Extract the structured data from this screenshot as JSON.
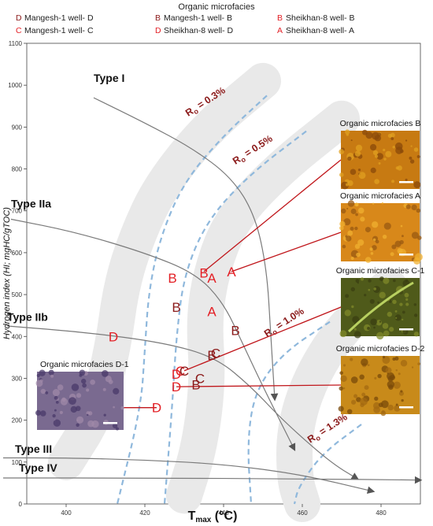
{
  "chart_data": {
    "type": "scatter",
    "legend": {
      "title": "Organic microfacies",
      "entries": [
        {
          "symbol": "D",
          "label": "Mangesh-1 well- D",
          "color": "#8b1a1a"
        },
        {
          "symbol": "B",
          "label": "Mangesh-1 well- B",
          "color": "#8b1a1a"
        },
        {
          "symbol": "B",
          "label": "Sheikhan-8 well- B",
          "color": "#e31e24"
        },
        {
          "symbol": "C",
          "label": "Mangesh-1 well- C",
          "color": "#e31e24"
        },
        {
          "symbol": "D",
          "label": "Sheikhan-8 well- D",
          "color": "#e31e24"
        },
        {
          "symbol": "A",
          "label": "Sheikhan-8 well- A",
          "color": "#e31e24"
        }
      ]
    },
    "xlabel_main": "T",
    "xlabel_sub": "max",
    "xlabel_unit": " (°C)",
    "ylabel": "Hydrogen index (HI; mgHC/gTOC)",
    "xlim": [
      390,
      490
    ],
    "ylim": [
      0,
      1100
    ],
    "xticks": [
      400,
      420,
      440,
      460,
      480
    ],
    "yticks": [
      0,
      100,
      200,
      300,
      400,
      500,
      600,
      700,
      800,
      900,
      1000,
      1100
    ],
    "kerogen_types": [
      {
        "label": "Type I",
        "label_at": [
          407,
          1000
        ],
        "curve": [
          [
            407,
            970
          ],
          [
            420,
            910
          ],
          [
            432,
            850
          ],
          [
            442,
            780
          ],
          [
            448,
            690
          ],
          [
            451,
            560
          ],
          [
            452,
            400
          ],
          [
            453,
            250
          ]
        ]
      },
      {
        "label": "Type IIa",
        "label_at": [
          386,
          700
        ],
        "curve": [
          [
            386,
            680
          ],
          [
            402,
            650
          ],
          [
            420,
            600
          ],
          [
            433,
            550
          ],
          [
            440,
            480
          ],
          [
            445,
            380
          ],
          [
            450,
            280
          ],
          [
            458,
            130
          ]
        ]
      },
      {
        "label": "Type IIb",
        "label_at": [
          385,
          430
        ],
        "curve": [
          [
            385,
            425
          ],
          [
            405,
            410
          ],
          [
            425,
            385
          ],
          [
            438,
            350
          ],
          [
            447,
            280
          ],
          [
            455,
            200
          ],
          [
            467,
            100
          ],
          [
            474,
            60
          ]
        ]
      },
      {
        "label": "Type III",
        "label_at": [
          387,
          115
        ],
        "curve": [
          [
            384,
            110
          ],
          [
            400,
            110
          ],
          [
            420,
            105
          ],
          [
            440,
            95
          ],
          [
            460,
            70
          ],
          [
            478,
            30
          ]
        ]
      },
      {
        "label": "Type IV",
        "label_at": [
          388,
          70
        ],
        "curve": [
          [
            384,
            62
          ],
          [
            420,
            62
          ],
          [
            460,
            60
          ],
          [
            490,
            57
          ]
        ]
      }
    ],
    "isoreflectance": [
      {
        "label_main": "R",
        "label_sub": "o",
        "label_value": " = 0.3%",
        "label_at": [
          431,
          925
        ],
        "label_rotate": -33,
        "curve": [
          [
            451,
            975
          ],
          [
            440,
            880
          ],
          [
            430,
            770
          ],
          [
            424,
            640
          ],
          [
            421,
            510
          ],
          [
            420,
            370
          ],
          [
            419,
            230
          ],
          [
            413,
            0
          ]
        ]
      },
      {
        "label_main": "R",
        "label_sub": "o",
        "label_value": " = 0.5%",
        "label_at": [
          443,
          810
        ],
        "label_rotate": -33,
        "curve": [
          [
            461,
            890
          ],
          [
            447,
            790
          ],
          [
            436,
            680
          ],
          [
            430,
            550
          ],
          [
            428,
            400
          ],
          [
            427,
            240
          ],
          [
            425,
            0
          ]
        ]
      },
      {
        "label_main": "R",
        "label_sub": "o",
        "label_value": " = 1.0%",
        "label_at": [
          451,
          398
        ],
        "label_rotate": -33,
        "curve": [
          [
            467,
            435
          ],
          [
            455,
            360
          ],
          [
            448,
            270
          ],
          [
            446,
            150
          ],
          [
            447,
            0
          ]
        ]
      },
      {
        "label_main": "R",
        "label_sub": "o",
        "label_value": " = 1.3%",
        "label_at": [
          462,
          145
        ],
        "label_rotate": -33,
        "curve": [
          [
            475,
            190
          ],
          [
            465,
            120
          ],
          [
            459,
            40
          ],
          [
            458,
            0
          ]
        ]
      }
    ],
    "points": [
      {
        "symbol": "B",
        "x": 427,
        "y": 540,
        "color": "#e31e24"
      },
      {
        "symbol": "B",
        "x": 435,
        "y": 552,
        "color": "#e31e24"
      },
      {
        "symbol": "A",
        "x": 437,
        "y": 540,
        "color": "#e31e24"
      },
      {
        "symbol": "A",
        "x": 442,
        "y": 555,
        "color": "#e31e24"
      },
      {
        "symbol": "B",
        "x": 428,
        "y": 470,
        "color": "#8b1a1a"
      },
      {
        "symbol": "A",
        "x": 437,
        "y": 460,
        "color": "#e31e24"
      },
      {
        "symbol": "B",
        "x": 443,
        "y": 415,
        "color": "#8b1a1a"
      },
      {
        "symbol": "D",
        "x": 412,
        "y": 400,
        "color": "#e31e24"
      },
      {
        "symbol": "B",
        "x": 437,
        "y": 355,
        "color": "#8b1a1a"
      },
      {
        "symbol": "C",
        "x": 438,
        "y": 360,
        "color": "#8b1a1a"
      },
      {
        "symbol": "C",
        "x": 429,
        "y": 318,
        "color": "#e31e24"
      },
      {
        "symbol": "C",
        "x": 430,
        "y": 318,
        "color": "#8b1a1a"
      },
      {
        "symbol": "D",
        "x": 428,
        "y": 310,
        "color": "#e31e24"
      },
      {
        "symbol": "C",
        "x": 434,
        "y": 300,
        "color": "#8b1a1a"
      },
      {
        "symbol": "D",
        "x": 428,
        "y": 280,
        "color": "#e31e24"
      },
      {
        "symbol": "B",
        "x": 433,
        "y": 285,
        "color": "#8b1a1a"
      },
      {
        "symbol": "D",
        "x": 423,
        "y": 230,
        "color": "#e31e24"
      }
    ],
    "insets": [
      {
        "title": "Organic microfacies B",
        "palette": [
          "#c77a12",
          "#e0a020",
          "#8a4a0a"
        ],
        "link_to": [
          435,
          555
        ]
      },
      {
        "title": "Organic microfacies A",
        "palette": [
          "#d8881a",
          "#f0b030",
          "#9a5a12"
        ],
        "link_to": [
          442,
          555
        ]
      },
      {
        "title": "Organic microfacies C-1",
        "palette": [
          "#4f5a1a",
          "#7f8a2a",
          "#3a3f12"
        ],
        "link_to": [
          430,
          318
        ]
      },
      {
        "title": "Organic microfacies D-2",
        "palette": [
          "#c88a1a",
          "#a46a12",
          "#7a4a0a"
        ],
        "link_to": [
          428,
          280
        ]
      },
      {
        "title": "Organic microfacies D-1",
        "palette": [
          "#7a6a90",
          "#a08aa8",
          "#4a3a6a"
        ],
        "link_to": [
          423,
          230
        ]
      }
    ]
  }
}
